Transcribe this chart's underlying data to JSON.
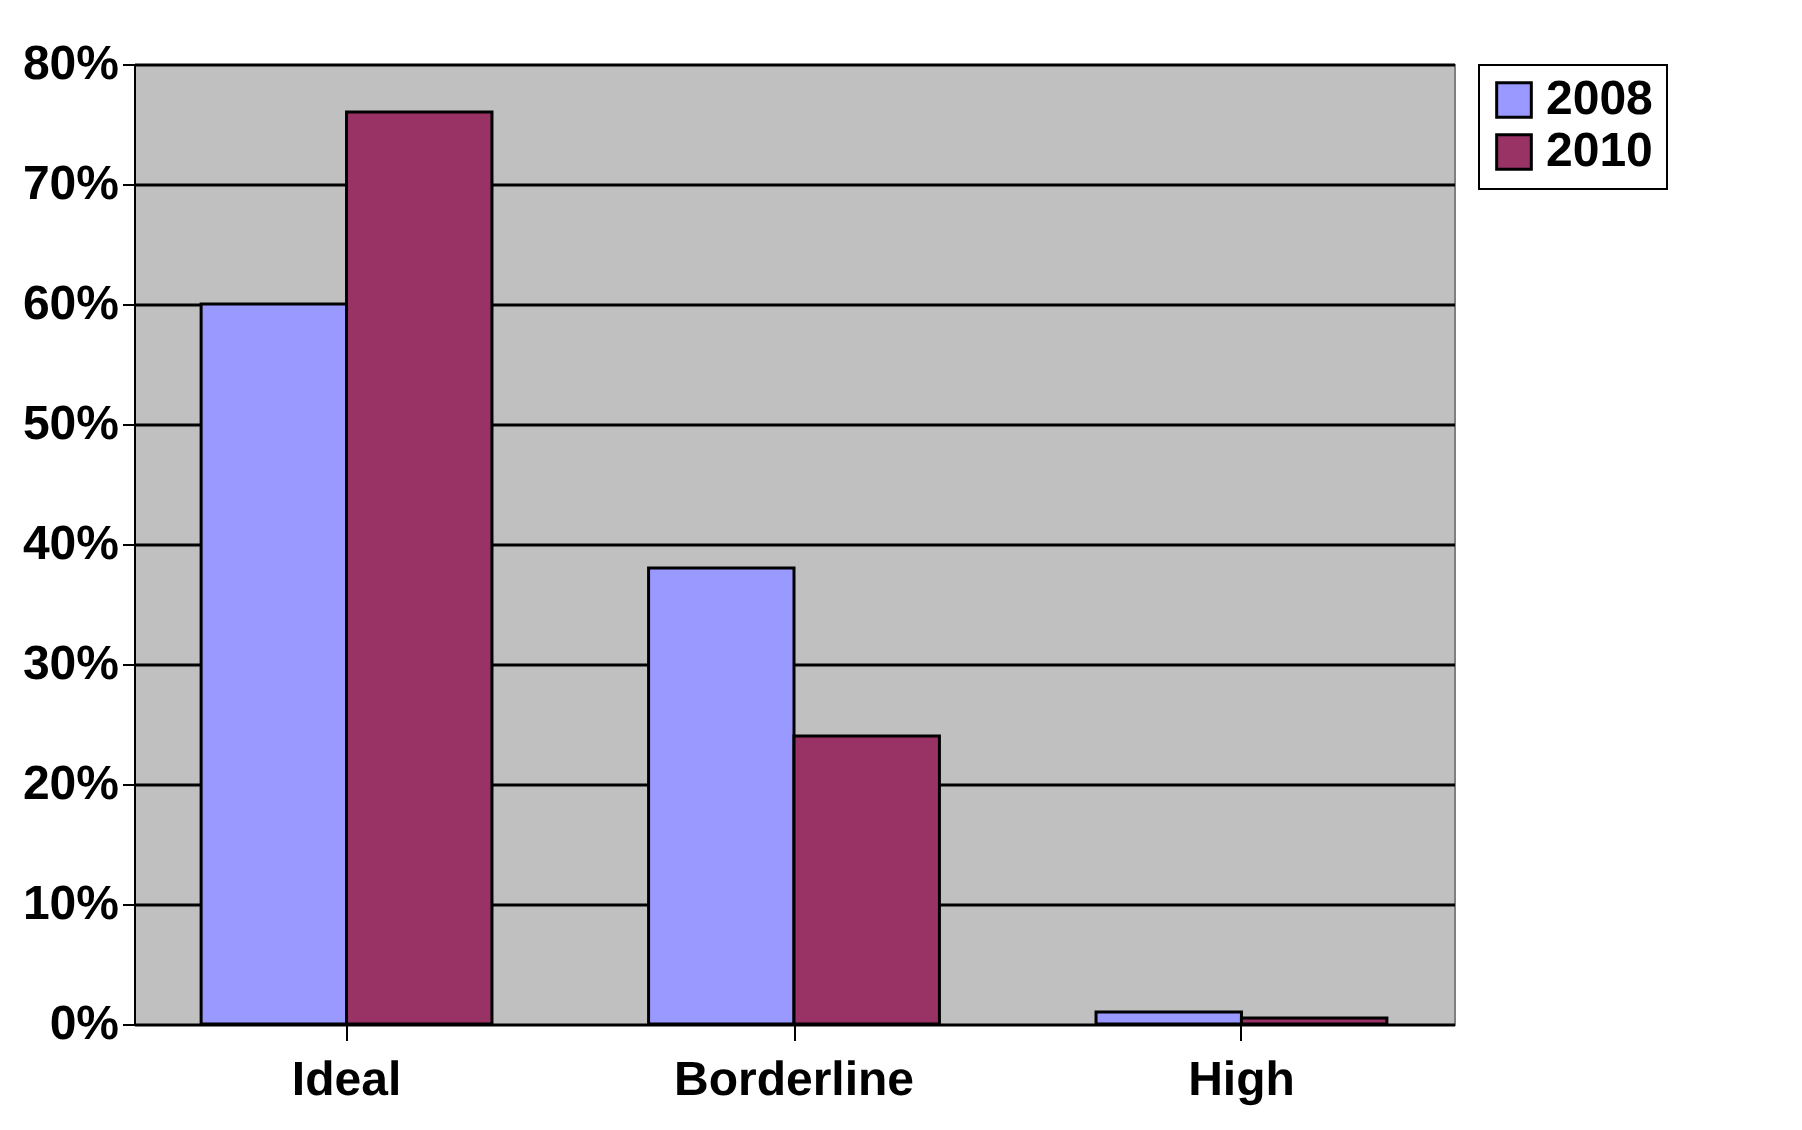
{
  "chart_data": {
    "type": "bar",
    "categories": [
      "Ideal",
      "Borderline",
      "High"
    ],
    "series": [
      {
        "name": "2008",
        "color": "#9999ff",
        "values": [
          60,
          38,
          1
        ]
      },
      {
        "name": "2010",
        "color": "#993366",
        "values": [
          76,
          24,
          0.5
        ]
      }
    ],
    "ylim": [
      0,
      80
    ],
    "yticks": [
      {
        "value": 0,
        "label": "0%"
      },
      {
        "value": 10,
        "label": "10%"
      },
      {
        "value": 20,
        "label": "20%"
      },
      {
        "value": 30,
        "label": "30%"
      },
      {
        "value": 40,
        "label": "40%"
      },
      {
        "value": 50,
        "label": "50%"
      },
      {
        "value": 60,
        "label": "60%"
      },
      {
        "value": 70,
        "label": "70%"
      },
      {
        "value": 80,
        "label": "80%"
      }
    ],
    "grid": "y",
    "legend": "right"
  }
}
